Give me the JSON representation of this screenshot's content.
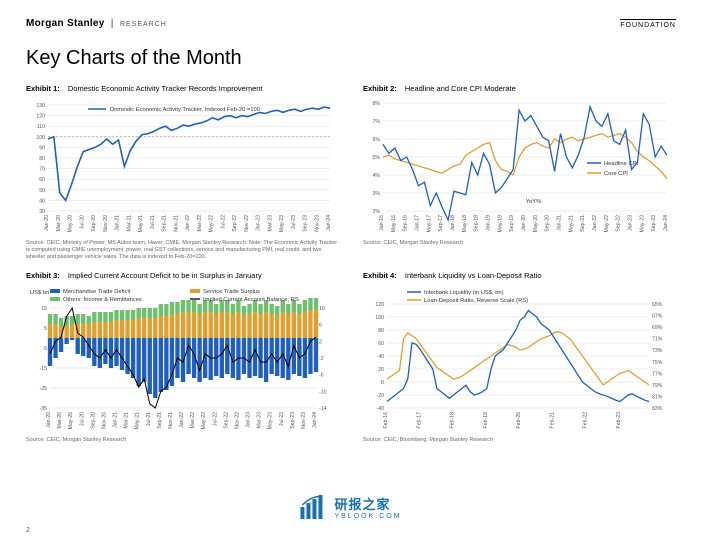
{
  "header": {
    "brand": "Morgan Stanley",
    "research": "RESEARCH",
    "foundation": "FOUNDATION"
  },
  "title": "Key Charts of the Month",
  "page_number": "2",
  "watermark": {
    "main": "研报之家",
    "sub": "YBLOOK.COM"
  },
  "ex1": {
    "label_prefix": "Exhibit 1:",
    "title": "Domestic Economic Activity Tracker Records Improvement",
    "legend": "Domestic Economic Activity Tracker, Indexed Feb-20 =100",
    "ylim": [
      30,
      130
    ],
    "ytick_step": 10,
    "ref_line": 100,
    "line_color": "#1f5fbf",
    "xlabels": [
      "Jan-20",
      "Mar-20",
      "May-20",
      "Jul-20",
      "Sep-20",
      "Nov-20",
      "Jan-21",
      "Mar-21",
      "May-21",
      "Jul-21",
      "Sep-21",
      "Nov-21",
      "Jan-22",
      "Mar-22",
      "May-22",
      "Jul-22",
      "Sep-22",
      "Nov-22",
      "Jan-23",
      "Mar-23",
      "May-23",
      "Jul-23",
      "Sep-23",
      "Nov-23",
      "Jan-24"
    ],
    "y": [
      98,
      100,
      47,
      40,
      55,
      72,
      86,
      88,
      90,
      93,
      98,
      93,
      97,
      72,
      87,
      96,
      102,
      103,
      105,
      108,
      110,
      106,
      108,
      111,
      110,
      112,
      113,
      115,
      118,
      116,
      119,
      120,
      118,
      120,
      119,
      121,
      123,
      122,
      124,
      125,
      123,
      125,
      126,
      124,
      126,
      127,
      126,
      128,
      127
    ],
    "source": "Source: CEIC, Ministry of Power, MS Autos team, Haver, CMIE, Morgan Stanley Research. Note: The Economic Activity Tracker is computed using CMIE unemployment, power, real GST collections, service and manufacturing PMI, real credit, and two wheeler and passenger vehicle sales. The data is indexed to Feb-20=100."
  },
  "ex2": {
    "label_prefix": "Exhibit 2:",
    "title": "Headline and Core CPI Moderate",
    "ylim": [
      2,
      8
    ],
    "ytick_step": 1,
    "ylabel_suffix": "%",
    "note": "YoY%",
    "line1_color": "#1f5fbf",
    "line1_label": "Headline CPI",
    "line2_color": "#e0a030",
    "line2_label": "Core CPI",
    "xlabels": [
      "Jan-16",
      "May-16",
      "Sep-16",
      "Jan-17",
      "May-17",
      "Sep-17",
      "Jan-18",
      "May-18",
      "Sep-18",
      "Jan-19",
      "May-19",
      "Sep-19",
      "Jan-20",
      "May-20",
      "Sep-20",
      "Jan-21",
      "May-21",
      "Sep-21",
      "Jan-22",
      "May-22",
      "Sep-22",
      "Jan-23",
      "May-23",
      "Sep-23",
      "Jan-24"
    ],
    "headline": [
      5.7,
      5.2,
      5.5,
      4.8,
      5.0,
      4.3,
      3.4,
      3.6,
      2.3,
      3.0,
      2.2,
      1.5,
      3.1,
      3.0,
      2.9,
      4.7,
      4.0,
      5.2,
      4.6,
      3.0,
      3.3,
      3.8,
      4.3,
      7.6,
      7.0,
      7.3,
      6.7,
      6.1,
      5.9,
      4.2,
      6.3,
      5.0,
      4.4,
      5.1,
      6.1,
      7.8,
      7.0,
      6.7,
      7.4,
      5.9,
      5.7,
      6.5,
      4.3,
      4.7,
      7.4,
      6.8,
      5.0,
      5.6,
      5.1
    ],
    "core": [
      5.0,
      5.1,
      4.9,
      4.8,
      4.7,
      4.6,
      4.5,
      4.4,
      4.3,
      4.2,
      4.1,
      4.3,
      4.5,
      4.6,
      5.1,
      5.3,
      5.5,
      5.7,
      5.8,
      4.8,
      4.3,
      4.2,
      4.0,
      5.0,
      5.5,
      5.7,
      5.8,
      5.6,
      5.5,
      6.0,
      5.8,
      6.0,
      6.1,
      5.9,
      6.0,
      6.1,
      6.2,
      6.3,
      6.1,
      6.2,
      6.3,
      6.1,
      5.8,
      5.3,
      5.0,
      4.8,
      4.5,
      4.2,
      3.8
    ],
    "source": "Source: CEIC, Morgan Stanley Research"
  },
  "ex3": {
    "label_prefix": "Exhibit 3:",
    "title": "Implied Current Account Deficit to be in Surplus in January",
    "ylabel": "US$ bn",
    "left_ylim": [
      -35,
      15
    ],
    "left_ticks": [
      15,
      5,
      -5,
      -15,
      -25,
      -35
    ],
    "right_ylim": [
      -14,
      10
    ],
    "right_ticks": [
      10,
      6,
      2,
      -2,
      -6,
      -10,
      -14
    ],
    "legend_items": [
      {
        "label": "Merchandise Trade Deficit",
        "color": "#1f5fbf",
        "type": "bar"
      },
      {
        "label": "Service Trade Surplus",
        "color": "#e0a030",
        "type": "bar"
      },
      {
        "label": "Others: Income & Remittances",
        "color": "#6fbf6f",
        "type": "bar"
      },
      {
        "label": "Implied Current Account Balance, RS",
        "color": "#000000",
        "type": "line"
      }
    ],
    "xlabels": [
      "Jan-20",
      "Mar-20",
      "May-20",
      "Jul-20",
      "Sep-20",
      "Nov-20",
      "Jan-21",
      "Mar-21",
      "May-21",
      "Jul-21",
      "Sep-21",
      "Nov-21",
      "Jan-22",
      "Mar-22",
      "May-22",
      "Jul-22",
      "Sep-22",
      "Nov-22",
      "Jan-23",
      "Mar-23",
      "May-23",
      "Jul-23",
      "Sep-23",
      "Nov-23",
      "Jan-24"
    ],
    "merch": [
      -14,
      -10,
      -7,
      -3,
      -1,
      -8,
      -9,
      -10,
      -14,
      -15,
      -13,
      -15,
      -14,
      -16,
      -18,
      -20,
      -24,
      -22,
      -28,
      -30,
      -27,
      -26,
      -24,
      -20,
      -22,
      -18,
      -20,
      -22,
      -20,
      -21,
      -19,
      -20,
      -18,
      -20,
      -21,
      -18,
      -20,
      -19,
      -20,
      -22,
      -18,
      -19,
      -20,
      -21,
      -18,
      -19,
      -20,
      -18,
      -17
    ],
    "serv": [
      7,
      7,
      6,
      6,
      7,
      7,
      7,
      7,
      8,
      8,
      8,
      8,
      9,
      9,
      9,
      9,
      10,
      10,
      10,
      10,
      11,
      11,
      12,
      12,
      13,
      13,
      13,
      12,
      13,
      13,
      12,
      13,
      13,
      12,
      13,
      11,
      12,
      13,
      12,
      13,
      12,
      11,
      13,
      12,
      13,
      12,
      13,
      14,
      14
    ],
    "other": [
      5,
      5,
      4,
      5,
      4,
      5,
      5,
      4,
      5,
      5,
      5,
      5,
      5,
      5,
      5,
      5,
      5,
      5,
      5,
      5,
      6,
      6,
      6,
      6,
      6,
      6,
      6,
      5,
      6,
      6,
      5,
      6,
      6,
      5,
      6,
      5,
      5,
      6,
      5,
      6,
      5,
      5,
      6,
      5,
      6,
      5,
      6,
      6,
      6
    ],
    "cab": [
      -1,
      2,
      3,
      8,
      10,
      4,
      3,
      1,
      -1,
      -2,
      0,
      -2,
      0,
      -2,
      -4,
      -6,
      -9,
      -7,
      -13,
      -14,
      -10,
      -9,
      -6,
      -2,
      -3,
      1,
      -1,
      -5,
      -1,
      -2,
      -2,
      -1,
      1,
      -3,
      -2,
      -2,
      -3,
      0,
      -3,
      -3,
      -1,
      -3,
      -1,
      -4,
      1,
      -2,
      -1,
      2,
      3
    ],
    "source": "Source: CEIC, Morgan Stanley Research"
  },
  "ex4": {
    "label_prefix": "Exhibit 4:",
    "title": "Interbank Liquidity vs Loan-Deposit Ratio",
    "left_ylim": [
      -40,
      120
    ],
    "left_ticks": [
      120,
      100,
      80,
      60,
      40,
      20,
      0,
      -20,
      -40
    ],
    "right_ylim": [
      65,
      83
    ],
    "right_ticks": [
      65,
      67,
      69,
      71,
      73,
      75,
      77,
      79,
      81,
      83
    ],
    "line1_color": "#1f5fbf",
    "line1_label": "Interbank Liquidity (in US$, bn)",
    "line2_color": "#e0a030",
    "line2_label": "Loan-Deposit Ratio, Reverse Scale (RS)",
    "xlabels": [
      "Feb-16",
      "Feb-17",
      "Feb-18",
      "Feb-19",
      "Feb-20",
      "Feb-21",
      "Feb-22",
      "Feb-23",
      "Feb-24"
    ],
    "liq": [
      -30,
      -25,
      -20,
      -15,
      -10,
      5,
      60,
      58,
      50,
      40,
      30,
      20,
      -10,
      -15,
      -20,
      -25,
      -20,
      -15,
      -10,
      -5,
      -15,
      -20,
      -18,
      -15,
      -10,
      20,
      40,
      45,
      50,
      60,
      70,
      80,
      95,
      100,
      110,
      105,
      100,
      90,
      85,
      80,
      70,
      60,
      50,
      40,
      30,
      20,
      10,
      0,
      -5,
      -10,
      -15,
      -18,
      -20,
      -22,
      -25,
      -28,
      -30,
      -25,
      -20,
      -18,
      -22,
      -25,
      -28,
      -30
    ],
    "ldr": [
      78,
      77.5,
      77,
      76.5,
      71,
      70,
      70.5,
      71,
      72,
      73,
      74,
      75,
      76,
      76.5,
      77,
      77.5,
      78,
      77.8,
      77.5,
      77,
      76.5,
      76,
      75.5,
      75,
      74.5,
      74,
      73.5,
      73,
      72.5,
      72,
      72.2,
      72.5,
      73,
      72.8,
      72.5,
      72,
      71.5,
      71,
      70.8,
      70.5,
      70,
      69.8,
      70,
      70.5,
      71,
      72,
      73,
      74,
      75,
      76,
      77,
      78,
      79,
      78.5,
      78,
      77.5,
      77,
      76.8,
      76.5,
      77,
      77.5,
      78,
      78.5,
      79
    ],
    "source": "Source: CEIC, Bloomberg, Morgan Stanley Research"
  }
}
